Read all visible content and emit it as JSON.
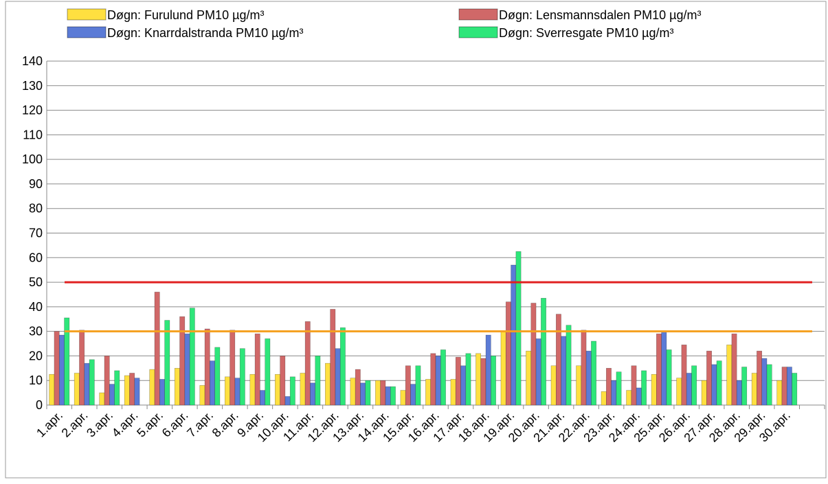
{
  "chart_data": {
    "type": "bar",
    "categories": [
      "1.apr.",
      "2.apr.",
      "3.apr.",
      "4.apr.",
      "5.apr.",
      "6.apr.",
      "7.apr.",
      "8.apr.",
      "9.apr.",
      "10.apr.",
      "11.apr.",
      "12.apr.",
      "13.apr.",
      "14.apr.",
      "15.apr.",
      "16.apr.",
      "17.apr.",
      "18.apr.",
      "19.apr.",
      "20.apr.",
      "21.apr.",
      "22.apr.",
      "23.apr.",
      "24.apr.",
      "25.apr.",
      "26.apr.",
      "27.apr.",
      "28.apr.",
      "29.apr.",
      "30.apr.",
      null
    ],
    "series": [
      {
        "name": "Døgn: Furulund  PM10  µg/m³",
        "color": "#ffe040",
        "values": [
          12.5,
          13,
          5,
          12,
          14.5,
          15,
          8,
          11.5,
          12.5,
          12.5,
          13,
          17,
          11,
          10,
          6,
          10.5,
          10.5,
          21,
          30,
          22,
          16,
          16,
          5.5,
          6,
          12.5,
          11,
          10,
          24.5,
          13,
          10,
          null
        ]
      },
      {
        "name": "Døgn: Lensmannsdalen  PM10  µg/m³",
        "color": "#d06868",
        "values": [
          30,
          30.5,
          20,
          13,
          46,
          36,
          31,
          30.5,
          29,
          20,
          34,
          39,
          14.5,
          10,
          16,
          21,
          19.5,
          19,
          42,
          41.5,
          37,
          30.5,
          15,
          16,
          29,
          24.5,
          22,
          29,
          22,
          15.5,
          null
        ]
      },
      {
        "name": "Døgn: Knarrdalstranda  PM10  µg/m³",
        "color": "#5b7bd6",
        "values": [
          28.5,
          17,
          8.5,
          11,
          10.5,
          29,
          18,
          11,
          6,
          3.5,
          9,
          23,
          9,
          7.5,
          8.5,
          20,
          16,
          28.5,
          57,
          27,
          28,
          22,
          10,
          7,
          30,
          13,
          16.5,
          10,
          19,
          15.5,
          null
        ]
      },
      {
        "name": "Døgn: Sverresgate   PM10  µg/m³",
        "color": "#2ee67a",
        "values": [
          35.5,
          18.5,
          14,
          null,
          34.5,
          39.5,
          23.5,
          23,
          27,
          11.5,
          20,
          31.5,
          10,
          7.5,
          16,
          22.5,
          21,
          20,
          62.5,
          43.5,
          32.5,
          26,
          13.5,
          14,
          22.5,
          16,
          18,
          15.5,
          16.5,
          13,
          null
        ]
      }
    ],
    "reference_lines": [
      {
        "value": 50,
        "color": "#e02020"
      },
      {
        "value": 30,
        "color": "#f5a020"
      }
    ],
    "ylim": [
      0,
      140
    ],
    "yticks": [
      0,
      10,
      20,
      30,
      40,
      50,
      60,
      70,
      80,
      90,
      100,
      110,
      120,
      130,
      140
    ],
    "grid": true
  }
}
